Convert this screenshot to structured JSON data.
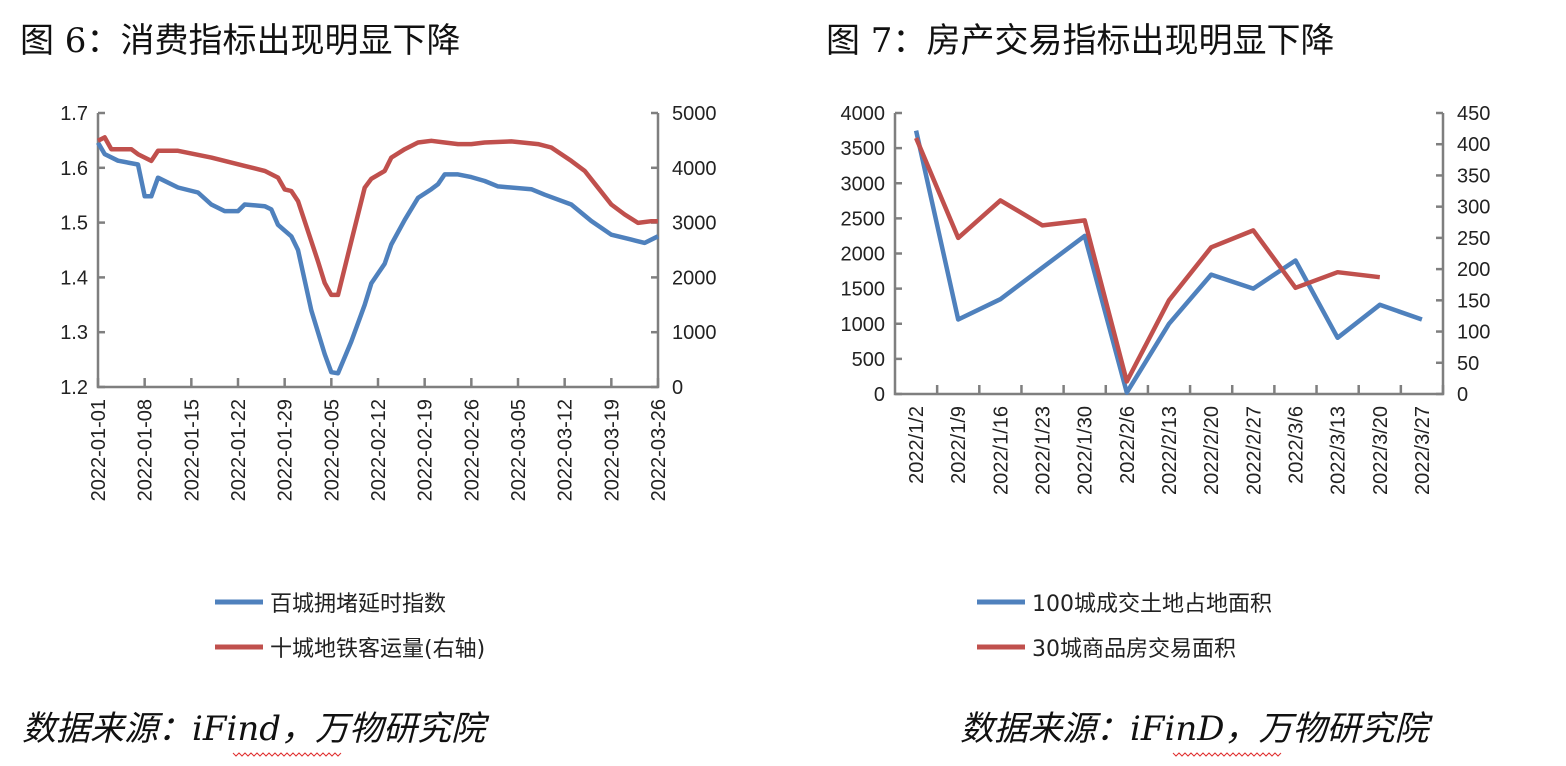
{
  "chart_data": [
    {
      "type": "line",
      "title": "图 6：消费指标出现明显下降",
      "x_type": "date",
      "x_range": [
        "2022-01-01",
        "2022-03-26"
      ],
      "x_tick_labels": [
        "2022-01-01",
        "2022-01-08",
        "2022-01-15",
        "2022-01-22",
        "2022-01-29",
        "2022-02-05",
        "2022-02-12",
        "2022-02-19",
        "2022-02-26",
        "2022-03-05",
        "2022-03-12",
        "2022-03-19",
        "2022-03-26"
      ],
      "y_left": {
        "min": 1.2,
        "max": 1.7,
        "step": 0.1,
        "tick_labels": [
          "1.2",
          "1.3",
          "1.4",
          "1.5",
          "1.6",
          "1.7"
        ]
      },
      "y_right": {
        "min": 0,
        "max": 5000,
        "step": 1000,
        "tick_labels": [
          "0",
          "1000",
          "2000",
          "3000",
          "4000",
          "5000"
        ]
      },
      "legend_position": "bottom",
      "grid": false,
      "series": [
        {
          "name": "百城拥堵延时指数",
          "axis": "left",
          "color": "#4f81bd",
          "points": [
            [
              "2022-01-01",
              1.646
            ],
            [
              "2022-01-02",
              1.625
            ],
            [
              "2022-01-04",
              1.613
            ],
            [
              "2022-01-07",
              1.606
            ],
            [
              "2022-01-08",
              1.548
            ],
            [
              "2022-01-09",
              1.548
            ],
            [
              "2022-01-10",
              1.582
            ],
            [
              "2022-01-13",
              1.564
            ],
            [
              "2022-01-16",
              1.555
            ],
            [
              "2022-01-18",
              1.533
            ],
            [
              "2022-01-20",
              1.521
            ],
            [
              "2022-01-22",
              1.521
            ],
            [
              "2022-01-23",
              1.533
            ],
            [
              "2022-01-26",
              1.53
            ],
            [
              "2022-01-27",
              1.524
            ],
            [
              "2022-01-28",
              1.496
            ],
            [
              "2022-01-30",
              1.475
            ],
            [
              "2022-01-31",
              1.45
            ],
            [
              "2022-02-02",
              1.34
            ],
            [
              "2022-02-04",
              1.26
            ],
            [
              "2022-02-05",
              1.227
            ],
            [
              "2022-02-06",
              1.225
            ],
            [
              "2022-02-08",
              1.283
            ],
            [
              "2022-02-10",
              1.35
            ],
            [
              "2022-02-11",
              1.389
            ],
            [
              "2022-02-13",
              1.425
            ],
            [
              "2022-02-14",
              1.46
            ],
            [
              "2022-02-16",
              1.505
            ],
            [
              "2022-02-18",
              1.545
            ],
            [
              "2022-02-20",
              1.561
            ],
            [
              "2022-02-21",
              1.57
            ],
            [
              "2022-02-22",
              1.588
            ],
            [
              "2022-02-24",
              1.588
            ],
            [
              "2022-02-26",
              1.583
            ],
            [
              "2022-02-28",
              1.576
            ],
            [
              "2022-03-02",
              1.566
            ],
            [
              "2022-03-07",
              1.561
            ],
            [
              "2022-03-09",
              1.551
            ],
            [
              "2022-03-13",
              1.533
            ],
            [
              "2022-03-16",
              1.503
            ],
            [
              "2022-03-19",
              1.478
            ],
            [
              "2022-03-22",
              1.469
            ],
            [
              "2022-03-24",
              1.463
            ],
            [
              "2022-03-26",
              1.475
            ]
          ]
        },
        {
          "name": "十城地铁客运量(右轴)",
          "axis": "right",
          "color": "#c0504d",
          "points": [
            [
              "2022-01-01",
              4493
            ],
            [
              "2022-01-02",
              4554
            ],
            [
              "2022-01-03",
              4340
            ],
            [
              "2022-01-06",
              4340
            ],
            [
              "2022-01-07",
              4249
            ],
            [
              "2022-01-09",
              4126
            ],
            [
              "2022-01-10",
              4310
            ],
            [
              "2022-01-13",
              4310
            ],
            [
              "2022-01-18",
              4187
            ],
            [
              "2022-01-23",
              4034
            ],
            [
              "2022-01-26",
              3943
            ],
            [
              "2022-01-28",
              3821
            ],
            [
              "2022-01-29",
              3606
            ],
            [
              "2022-01-30",
              3576
            ],
            [
              "2022-01-31",
              3392
            ],
            [
              "2022-02-03",
              2292
            ],
            [
              "2022-02-04",
              1900
            ],
            [
              "2022-02-05",
              1680
            ],
            [
              "2022-02-06",
              1681
            ],
            [
              "2022-02-08",
              2659
            ],
            [
              "2022-02-10",
              3637
            ],
            [
              "2022-02-11",
              3800
            ],
            [
              "2022-02-13",
              3943
            ],
            [
              "2022-02-14",
              4187
            ],
            [
              "2022-02-16",
              4340
            ],
            [
              "2022-02-18",
              4462
            ],
            [
              "2022-02-20",
              4493
            ],
            [
              "2022-02-22",
              4462
            ],
            [
              "2022-02-24",
              4432
            ],
            [
              "2022-02-26",
              4432
            ],
            [
              "2022-02-28",
              4462
            ],
            [
              "2022-03-04",
              4481
            ],
            [
              "2022-03-08",
              4432
            ],
            [
              "2022-03-10",
              4371
            ],
            [
              "2022-03-13",
              4126
            ],
            [
              "2022-03-15",
              3943
            ],
            [
              "2022-03-17",
              3637
            ],
            [
              "2022-03-19",
              3331
            ],
            [
              "2022-03-21",
              3148
            ],
            [
              "2022-03-23",
              2995
            ],
            [
              "2022-03-25",
              3026
            ],
            [
              "2022-03-26",
              3026
            ]
          ]
        }
      ],
      "source": "数据来源：iFind，万物研究院"
    },
    {
      "type": "line",
      "title": "图 7：房产交易指标出现明显下降",
      "categories": [
        "2022/1/2",
        "2022/1/9",
        "2022/1/16",
        "2022/1/23",
        "2022/1/30",
        "2022/2/6",
        "2022/2/13",
        "2022/2/20",
        "2022/2/27",
        "2022/3/6",
        "2022/3/13",
        "2022/3/20",
        "2022/3/27"
      ],
      "y_left": {
        "min": 0,
        "max": 4000,
        "step": 500,
        "tick_labels": [
          "0",
          "500",
          "1000",
          "1500",
          "2000",
          "2500",
          "3000",
          "3500",
          "4000"
        ]
      },
      "y_right": {
        "min": 0,
        "max": 450,
        "step": 50,
        "tick_labels": [
          "0",
          "50",
          "100",
          "150",
          "200",
          "250",
          "300",
          "350",
          "400",
          "450"
        ]
      },
      "legend_position": "bottom",
      "grid": false,
      "series": [
        {
          "name": "100城成交土地占地面积",
          "axis": "left",
          "color": "#4f81bd",
          "values": [
            3750,
            1060,
            1350,
            1800,
            2250,
            20,
            1000,
            1700,
            1500,
            1900,
            800,
            1270,
            1060
          ]
        },
        {
          "name": "30城商品房交易面积",
          "axis": "right",
          "color": "#c0504d",
          "values": [
            410,
            250,
            310,
            270,
            278,
            20,
            150,
            235,
            262,
            170,
            195,
            187,
            null
          ]
        }
      ],
      "source": "数据来源：iFinD，万物研究院"
    }
  ]
}
